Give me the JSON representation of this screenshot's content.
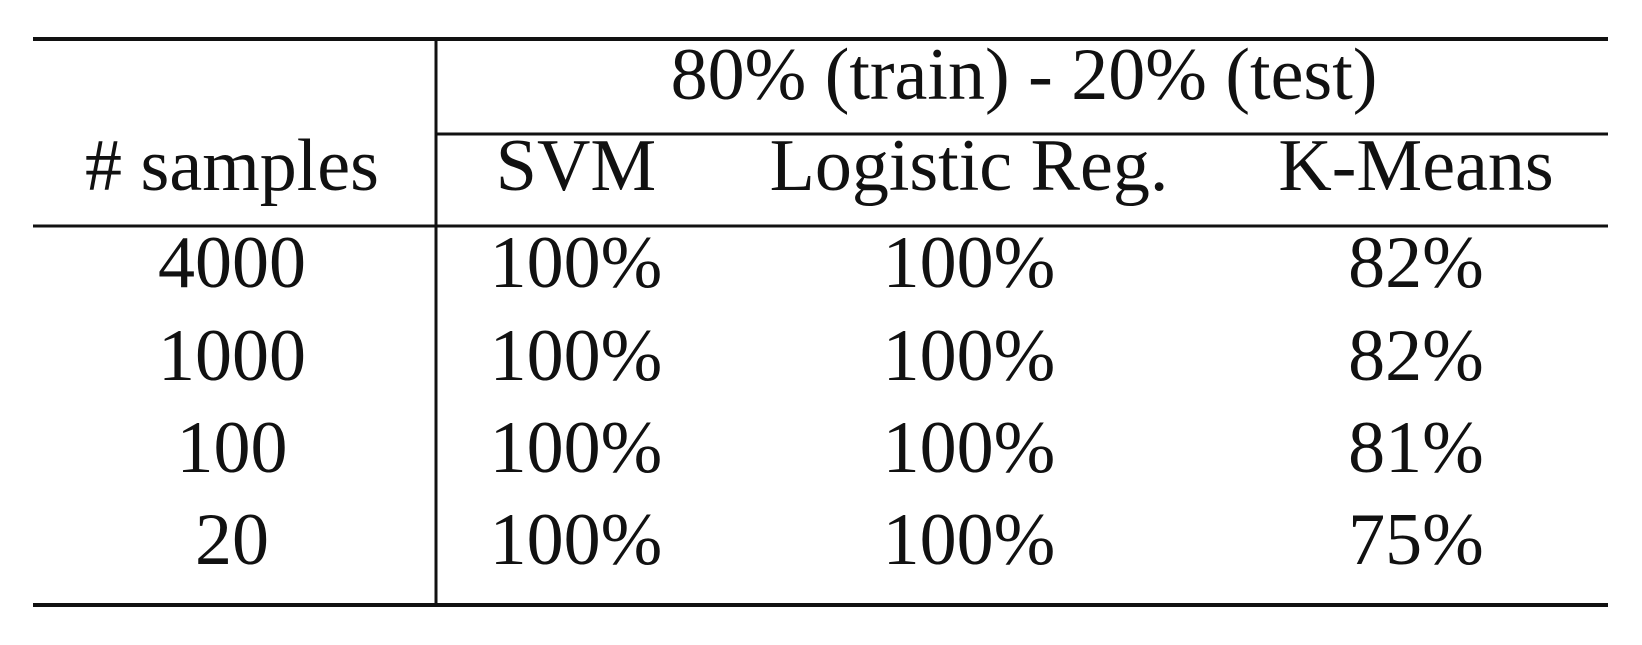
{
  "table": {
    "group_header": "80% (train) - 20% (test)",
    "columns": [
      "# samples",
      "SVM",
      "Logistic Reg.",
      "K-Means"
    ],
    "rows": [
      [
        "4000",
        "100%",
        "100%",
        "82%"
      ],
      [
        "1000",
        "100%",
        "100%",
        "82%"
      ],
      [
        "100",
        "100%",
        "100%",
        "81%"
      ],
      [
        "20",
        "100%",
        "100%",
        "75%"
      ]
    ]
  }
}
